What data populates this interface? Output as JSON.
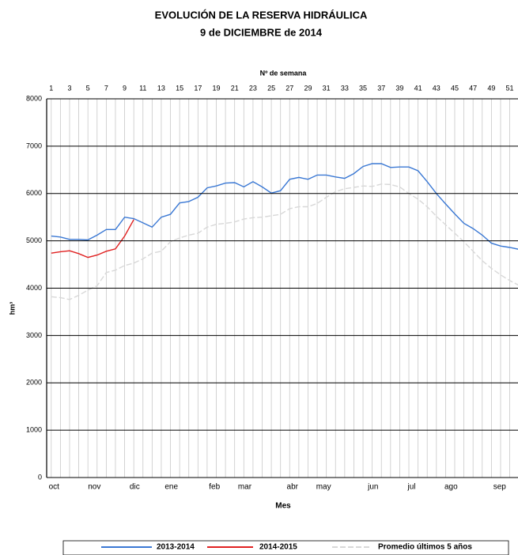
{
  "chart_data": {
    "type": "line",
    "title": "EVOLUCIÓN DE LA RESERVA HIDRÁULICA",
    "subtitle": "9 de DICIEMBRE de 2014",
    "x_label_top": "Nº de semana",
    "x_label": "Mes",
    "y_label": "hm³",
    "x": [
      1,
      2,
      3,
      4,
      5,
      6,
      7,
      8,
      9,
      10,
      11,
      12,
      13,
      14,
      15,
      16,
      17,
      18,
      19,
      20,
      21,
      22,
      23,
      24,
      25,
      26,
      27,
      28,
      29,
      30,
      31,
      32,
      33,
      34,
      35,
      36,
      37,
      38,
      39,
      40,
      41,
      42,
      43,
      44,
      45,
      46,
      47,
      48,
      49,
      50,
      51,
      52
    ],
    "xlim": [
      0.5,
      51.9
    ],
    "xticks": [
      1,
      3,
      5,
      7,
      9,
      11,
      13,
      15,
      17,
      19,
      21,
      23,
      25,
      27,
      29,
      31,
      33,
      35,
      37,
      39,
      41,
      43,
      45,
      47,
      49,
      51
    ],
    "month_ticks": [
      {
        "value": 1.3,
        "label": "oct"
      },
      {
        "value": 5.7,
        "label": "nov"
      },
      {
        "value": 10.1,
        "label": "dic"
      },
      {
        "value": 14.1,
        "label": "ene"
      },
      {
        "value": 18.8,
        "label": "feb"
      },
      {
        "value": 22.1,
        "label": "mar"
      },
      {
        "value": 27.3,
        "label": "abr"
      },
      {
        "value": 30.7,
        "label": "may"
      },
      {
        "value": 36.1,
        "label": "jun"
      },
      {
        "value": 40.3,
        "label": "jul"
      },
      {
        "value": 44.6,
        "label": "ago"
      },
      {
        "value": 49.9,
        "label": "sep"
      }
    ],
    "ylim": [
      0,
      8000
    ],
    "yticks": [
      0,
      1000,
      2000,
      3000,
      4000,
      5000,
      6000,
      7000,
      8000
    ],
    "grid": true,
    "legend": "bottom",
    "series": [
      {
        "name": "2013-2014",
        "color": "#3a78d4",
        "values": [
          5100,
          5080,
          5030,
          5030,
          5020,
          5120,
          5240,
          5240,
          5500,
          5470,
          5380,
          5290,
          5500,
          5560,
          5800,
          5830,
          5920,
          6120,
          6160,
          6220,
          6230,
          6140,
          6250,
          6140,
          6010,
          6060,
          6300,
          6340,
          6300,
          6390,
          6390,
          6350,
          6320,
          6420,
          6570,
          6630,
          6630,
          6550,
          6560,
          6560,
          6480,
          6250,
          6000,
          5780,
          5570,
          5370,
          5260,
          5120,
          4950,
          4890,
          4860,
          4820
        ]
      },
      {
        "name": "2014-2015",
        "color": "#e02020",
        "values": [
          4740,
          4770,
          4790,
          4730,
          4650,
          4700,
          4780,
          4830,
          5100,
          5450,
          null,
          null,
          null,
          null,
          null,
          null,
          null,
          null,
          null,
          null,
          null,
          null,
          null,
          null,
          null,
          null,
          null,
          null,
          null,
          null,
          null,
          null,
          null,
          null,
          null,
          null,
          null,
          null,
          null,
          null,
          null,
          null,
          null,
          null,
          null,
          null,
          null,
          null,
          null,
          null,
          null,
          null
        ]
      },
      {
        "name": "Promedio últimos 5 años",
        "color": "#d8d8d8",
        "dashed": true,
        "values": [
          3820,
          3800,
          3760,
          3850,
          3960,
          4050,
          4330,
          4380,
          4480,
          4530,
          4620,
          4740,
          4780,
          4980,
          5060,
          5120,
          5160,
          5290,
          5350,
          5370,
          5400,
          5460,
          5490,
          5500,
          5530,
          5560,
          5680,
          5720,
          5720,
          5790,
          5920,
          6040,
          6100,
          6130,
          6160,
          6150,
          6200,
          6190,
          6140,
          6000,
          5880,
          5720,
          5520,
          5340,
          5160,
          4980,
          4780,
          4580,
          4420,
          4280,
          4160,
          4060
        ]
      }
    ]
  }
}
